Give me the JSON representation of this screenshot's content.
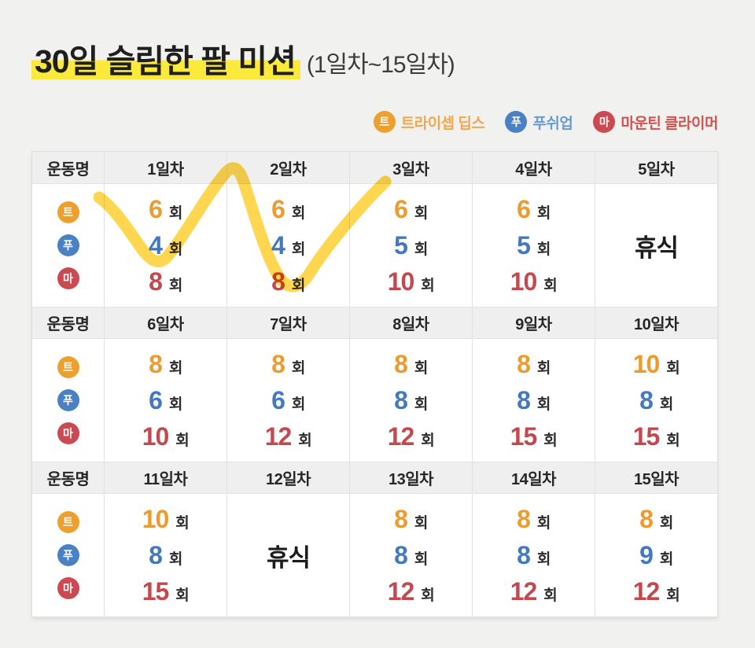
{
  "title": {
    "highlighted": "30일 슬림한 팔 미션",
    "range": "(1일차~15일차)"
  },
  "legend": {
    "items": [
      {
        "icon": "tricep-dips-icon",
        "badge": "트",
        "label": "트라이셉 딥스",
        "badge_color": "#eea02f",
        "text_color": "#f0a850"
      },
      {
        "icon": "pushup-icon",
        "badge": "푸",
        "label": "푸쉬업",
        "badge_color": "#4a80c4",
        "text_color": "#699bd2"
      },
      {
        "icon": "mountain-climber-icon",
        "badge": "마",
        "label": "마운틴 클라이머",
        "badge_color": "#cb4950",
        "text_color": "#d2524e"
      }
    ]
  },
  "table": {
    "corner_label": "운동명",
    "unit": "회",
    "rest_label": "휴식",
    "exercises": [
      {
        "icon": "tricep-dips-icon",
        "badge": "트",
        "name": "트라이셉 딥스",
        "badge_color": "#eea02f",
        "value_color": "#ee9b2e"
      },
      {
        "icon": "pushup-icon",
        "badge": "푸",
        "name": "푸쉬업",
        "badge_color": "#4a80c4",
        "value_color": "#4579be"
      },
      {
        "icon": "mountain-climber-icon",
        "badge": "마",
        "name": "마운틴 클라이머",
        "badge_color": "#cb4950",
        "value_color": "#c14950"
      }
    ],
    "blocks": [
      {
        "days": [
          "1일차",
          "2일차",
          "3일차",
          "4일차",
          "5일차"
        ],
        "cells": [
          {
            "type": "reps",
            "values": [
              6,
              4,
              8
            ]
          },
          {
            "type": "reps",
            "values": [
              6,
              4,
              8
            ]
          },
          {
            "type": "reps",
            "values": [
              6,
              5,
              10
            ]
          },
          {
            "type": "reps",
            "values": [
              6,
              5,
              10
            ]
          },
          {
            "type": "rest"
          }
        ]
      },
      {
        "days": [
          "6일차",
          "7일차",
          "8일차",
          "9일차",
          "10일차"
        ],
        "cells": [
          {
            "type": "reps",
            "values": [
              8,
              6,
              10
            ]
          },
          {
            "type": "reps",
            "values": [
              8,
              6,
              12
            ]
          },
          {
            "type": "reps",
            "values": [
              8,
              8,
              12
            ]
          },
          {
            "type": "reps",
            "values": [
              8,
              8,
              15
            ]
          },
          {
            "type": "reps",
            "values": [
              10,
              8,
              15
            ]
          }
        ]
      },
      {
        "days": [
          "11일차",
          "12일차",
          "13일차",
          "14일차",
          "15일차"
        ],
        "cells": [
          {
            "type": "reps",
            "values": [
              10,
              8,
              15
            ]
          },
          {
            "type": "rest"
          },
          {
            "type": "reps",
            "values": [
              8,
              8,
              12
            ]
          },
          {
            "type": "reps",
            "values": [
              8,
              8,
              12
            ]
          },
          {
            "type": "reps",
            "values": [
              8,
              9,
              12
            ]
          }
        ]
      }
    ]
  },
  "annotation": {
    "type": "yellow-marker-squiggle",
    "color": "#ffd23c"
  }
}
